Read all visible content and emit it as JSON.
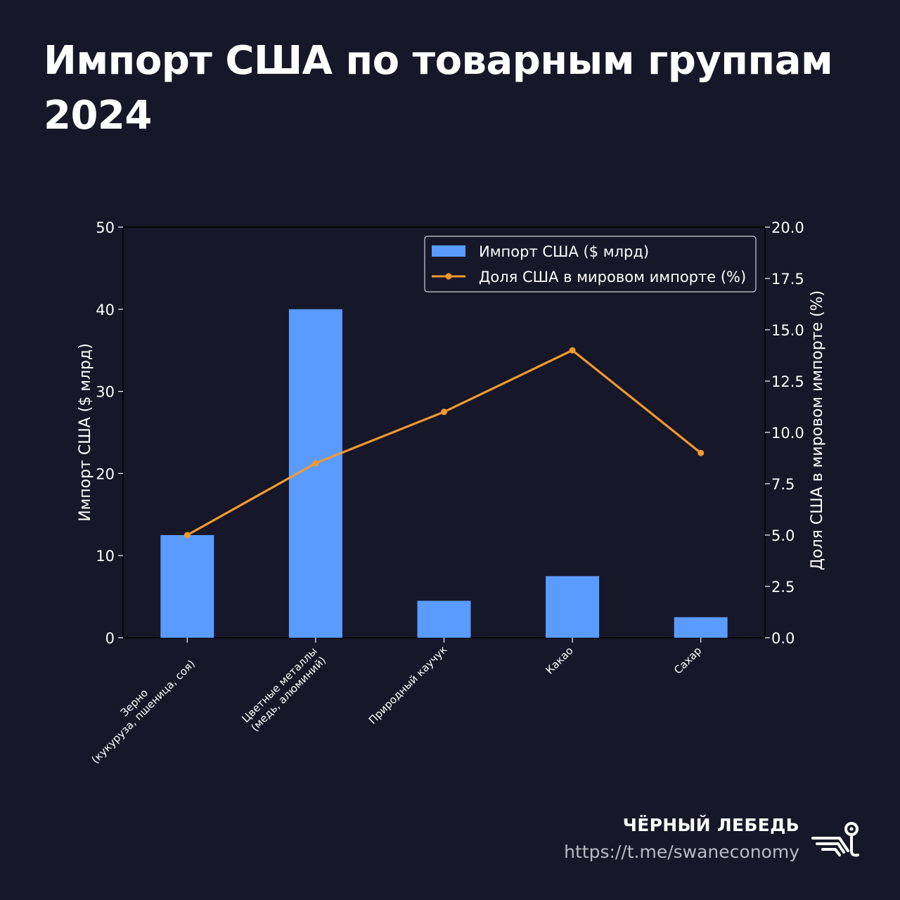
{
  "page": {
    "title_lines": [
      "Импорт США по товарным группам",
      "2024"
    ]
  },
  "footer": {
    "brand": "ЧЁРНЫЙ ЛЕБЕДЬ",
    "link": "https://t.me/swaneconomy",
    "logo_icon": "swan-logo-icon"
  },
  "colors": {
    "background": "#161728",
    "bar": "#5a9bff",
    "line": "#f2992e",
    "text": "#ffffff"
  },
  "chart_data": {
    "type": "bar",
    "categories": [
      [
        "Зерно",
        "(кукуруза, пшеница, соя)"
      ],
      [
        "Цветные металлы",
        "(медь, алюминий)"
      ],
      [
        "Природный каучук"
      ],
      [
        "Какао"
      ],
      [
        "Сахар"
      ]
    ],
    "series": [
      {
        "name": "Импорт США ($ млрд)",
        "type": "bar",
        "axis": "left",
        "values": [
          12.5,
          40,
          4.5,
          7.5,
          2.5
        ]
      },
      {
        "name": "Доля США в мировом импорте (%)",
        "type": "line",
        "axis": "right",
        "values": [
          5.0,
          8.5,
          11.0,
          14.0,
          9.0
        ]
      }
    ],
    "ylabel": "Импорт США ($ млрд)",
    "y2label": "Доля США в мировом импорте (%)",
    "ylim": [
      0,
      50
    ],
    "y2lim": [
      0,
      20
    ],
    "yticks": [
      "0",
      "10",
      "20",
      "30",
      "40",
      "50"
    ],
    "y2ticks": [
      "0.0",
      "2.5",
      "5.0",
      "7.5",
      "10.0",
      "12.5",
      "15.0",
      "17.5",
      "20.0"
    ],
    "grid": false,
    "legend": "top-right"
  }
}
